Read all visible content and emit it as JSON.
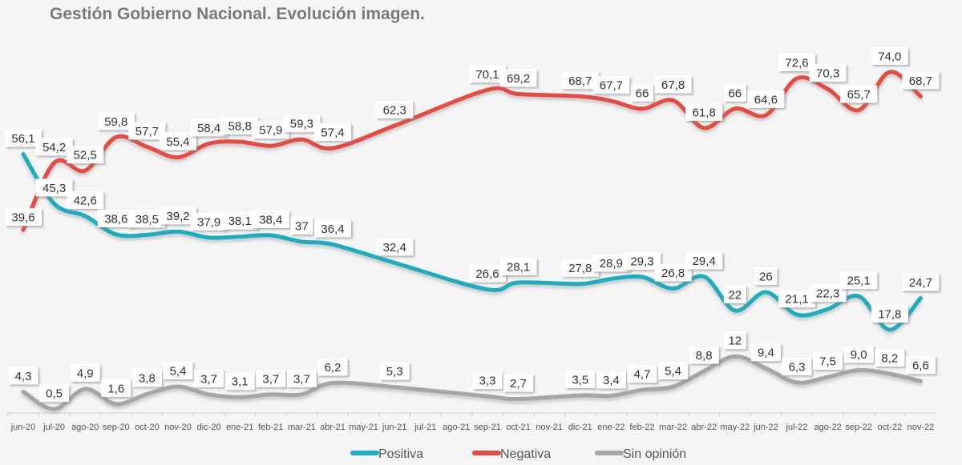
{
  "chart_data": {
    "type": "line",
    "title": "Gestión Gobierno Nacional. Evolución imagen.",
    "xlabel": "",
    "ylabel": "",
    "ylim": [
      0,
      90
    ],
    "grid": false,
    "legend": "bottom-center",
    "categories": [
      "jun-20",
      "jul-20",
      "ago-20",
      "sep-20",
      "oct-20",
      "nov-20",
      "dic-20",
      "ene-21",
      "feb-21",
      "mar-21",
      "abr-21",
      "may-21",
      "jun-21",
      "jul-21",
      "ago-21",
      "sep-21",
      "oct-21",
      "nov-21",
      "dic-21",
      "ene-22",
      "feb-22",
      "mar-22",
      "abr-22",
      "may-22",
      "jun-22",
      "jul-22",
      "ago-22",
      "sep-22",
      "oct-22",
      "nov-22"
    ],
    "series": [
      {
        "name": "Positiva",
        "color": "#1aaebf",
        "values": [
          56.1,
          45.3,
          42.6,
          38.6,
          38.5,
          39.2,
          37.9,
          38.1,
          38.4,
          37,
          36.4,
          null,
          32.4,
          null,
          null,
          26.6,
          28.1,
          null,
          27.8,
          28.9,
          29.3,
          26.8,
          29.4,
          22,
          26,
          21.1,
          22.3,
          25.1,
          17.8,
          24.7
        ],
        "labels": [
          "56,1",
          "45,3",
          "42,6",
          "38,6",
          "38,5",
          "39,2",
          "37,9",
          "38,1",
          "38,4",
          "37",
          "36,4",
          null,
          "32,4",
          null,
          null,
          "26,6",
          "28,1",
          null,
          "27,8",
          "28,9",
          "29,3",
          "26,8",
          "29,4",
          "22",
          "26",
          "21,1",
          "22,3",
          "25,1",
          "17,8",
          "24,7"
        ]
      },
      {
        "name": "Negativa",
        "color": "#e8483f",
        "values": [
          39.6,
          54.2,
          52.5,
          59.8,
          57.7,
          55.4,
          58.4,
          58.8,
          57.9,
          59.3,
          57.4,
          null,
          62.3,
          null,
          null,
          70.1,
          69.2,
          null,
          68.7,
          67.7,
          66,
          67.8,
          61.8,
          66,
          64.6,
          72.6,
          70.3,
          65.7,
          74.0,
          68.7
        ],
        "labels": [
          "39,6",
          "54,2",
          "52,5",
          "59,8",
          "57,7",
          "55,4",
          "58,4",
          "58,8",
          "57,9",
          "59,3",
          "57,4",
          null,
          "62,3",
          null,
          null,
          "70,1",
          "69,2",
          null,
          "68,7",
          "67,7",
          "66",
          "67,8",
          "61,8",
          "66",
          "64,6",
          "72,6",
          "70,3",
          "65,7",
          "74,0",
          "68,7"
        ]
      },
      {
        "name": "Sin opinión",
        "color": "#a6a6a6",
        "values": [
          4.3,
          0.5,
          4.9,
          1.6,
          3.8,
          5.4,
          3.7,
          3.1,
          3.7,
          3.7,
          6.2,
          null,
          5.3,
          null,
          null,
          3.3,
          2.7,
          null,
          3.5,
          3.4,
          4.7,
          5.4,
          8.8,
          12,
          9.4,
          6.3,
          7.5,
          9.0,
          8.2,
          6.6
        ],
        "labels": [
          "4,3",
          "0,5",
          "4,9",
          "1,6",
          "3,8",
          "5,4",
          "3,7",
          "3,1",
          "3,7",
          "3,7",
          "6,2",
          null,
          "5,3",
          null,
          null,
          "3,3",
          "2,7",
          null,
          "3,5",
          "3,4",
          "4,7",
          "5,4",
          "8,8",
          "12",
          "9,4",
          "6,3",
          "7,5",
          "9,0",
          "8,2",
          "6,6"
        ]
      }
    ]
  }
}
